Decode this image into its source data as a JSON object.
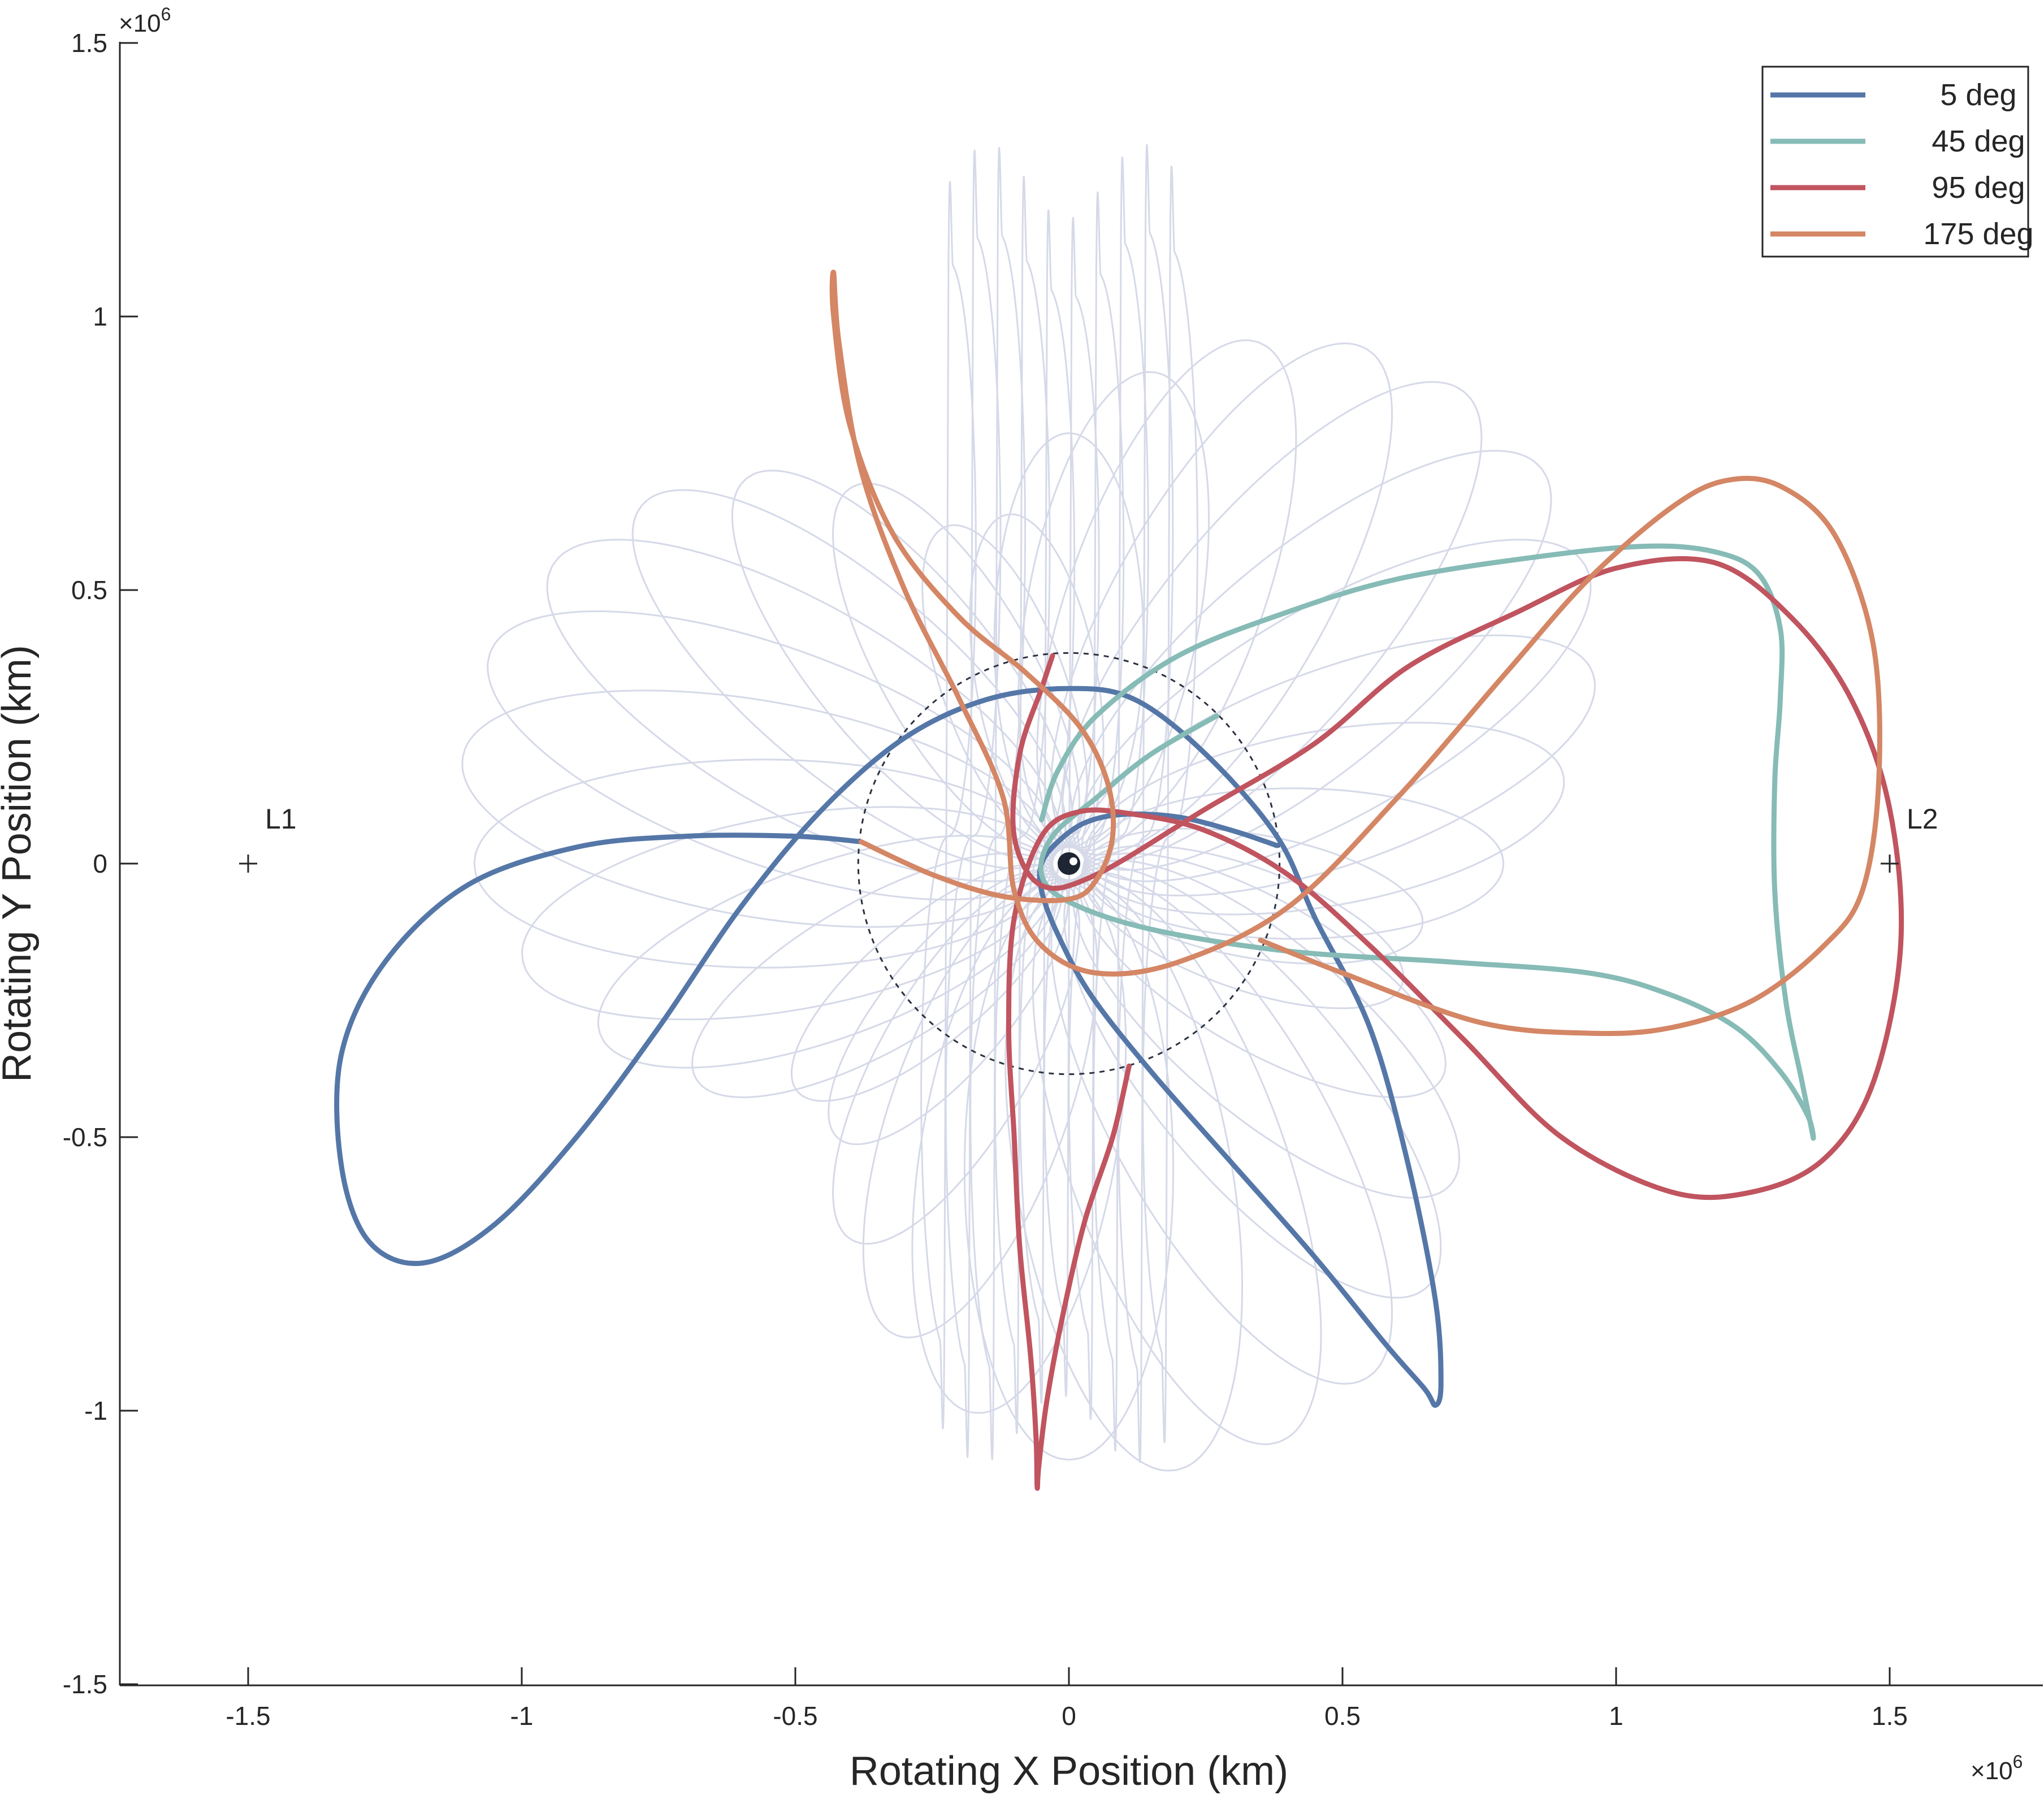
{
  "chart_data": {
    "type": "line",
    "title": "",
    "xlabel": "Rotating X Position (km)",
    "ylabel": "Rotating Y Position (km)",
    "scale_factor": {
      "base": "×10",
      "exponent": "6"
    },
    "xlim": [
      -1.75,
      1.77
    ],
    "ylim": [
      -1.5,
      1.5
    ],
    "xticks": [
      -1.5,
      -1,
      -0.5,
      0,
      0.5,
      1,
      1.5
    ],
    "xtick_labels": [
      "-1.5",
      "-1",
      "-0.5",
      "0",
      "0.5",
      "1",
      "1.5"
    ],
    "yticks": [
      -1.5,
      -1,
      -0.5,
      0,
      0.5,
      1,
      1.5
    ],
    "ytick_labels": [
      "-1.5",
      "-1",
      "-0.5",
      "0",
      "0.5",
      "1",
      "1.5"
    ],
    "grid": false,
    "legend_position": "top-right",
    "points": [
      {
        "label": "L1",
        "x": -1.5,
        "y": 0
      },
      {
        "label": "L2",
        "x": 1.5,
        "y": 0
      }
    ],
    "reference_circle": {
      "center": [
        0,
        0
      ],
      "radius": 0.385,
      "style": "dashed"
    },
    "central_body": {
      "x": 0,
      "y": 0
    },
    "series": [
      {
        "name": "5 deg",
        "color": "#5577a8",
        "points": [
          [
            0.38,
            0.033
          ],
          [
            0.3,
            0.06
          ],
          [
            0.2,
            0.085
          ],
          [
            0.1,
            0.09
          ],
          [
            0.03,
            0.075
          ],
          [
            -0.02,
            0.04
          ],
          [
            -0.05,
            0
          ],
          [
            -0.05,
            -0.05
          ],
          [
            -0.02,
            -0.13
          ],
          [
            0.04,
            -0.24
          ],
          [
            0.15,
            -0.38
          ],
          [
            0.3,
            -0.55
          ],
          [
            0.45,
            -0.72
          ],
          [
            0.58,
            -0.88
          ],
          [
            0.65,
            -0.96
          ],
          [
            0.67,
            -0.99
          ],
          [
            0.68,
            -0.95
          ],
          [
            0.67,
            -0.8
          ],
          [
            0.62,
            -0.55
          ],
          [
            0.55,
            -0.3
          ],
          [
            0.45,
            -0.1
          ],
          [
            0.38,
            0.05
          ],
          [
            0.25,
            0.2
          ],
          [
            0.12,
            0.3
          ],
          [
            0,
            0.32
          ],
          [
            -0.15,
            0.3
          ],
          [
            -0.3,
            0.23
          ],
          [
            -0.45,
            0.1
          ],
          [
            -0.6,
            -0.08
          ],
          [
            -0.75,
            -0.3
          ],
          [
            -0.9,
            -0.5
          ],
          [
            -1.05,
            -0.66
          ],
          [
            -1.18,
            -0.73
          ],
          [
            -1.28,
            -0.69
          ],
          [
            -1.33,
            -0.55
          ],
          [
            -1.33,
            -0.35
          ],
          [
            -1.25,
            -0.18
          ],
          [
            -1.1,
            -0.04
          ],
          [
            -0.9,
            0.03
          ],
          [
            -0.7,
            0.05
          ],
          [
            -0.5,
            0.05
          ],
          [
            -0.38,
            0.04
          ]
        ]
      },
      {
        "name": "45 deg",
        "color": "#86bbb6",
        "points": [
          [
            0.27,
            0.27
          ],
          [
            0.15,
            0.2
          ],
          [
            0.05,
            0.12
          ],
          [
            -0.03,
            0.05
          ],
          [
            -0.05,
            -0.02
          ],
          [
            0,
            -0.07
          ],
          [
            0.15,
            -0.12
          ],
          [
            0.4,
            -0.16
          ],
          [
            0.7,
            -0.18
          ],
          [
            0.95,
            -0.2
          ],
          [
            1.1,
            -0.24
          ],
          [
            1.22,
            -0.3
          ],
          [
            1.3,
            -0.38
          ],
          [
            1.35,
            -0.46
          ],
          [
            1.36,
            -0.5
          ],
          [
            1.34,
            -0.4
          ],
          [
            1.31,
            -0.25
          ],
          [
            1.29,
            -0.05
          ],
          [
            1.29,
            0.15
          ],
          [
            1.3,
            0.3
          ],
          [
            1.3,
            0.43
          ],
          [
            1.26,
            0.53
          ],
          [
            1.18,
            0.57
          ],
          [
            1.05,
            0.58
          ],
          [
            0.85,
            0.56
          ],
          [
            0.6,
            0.52
          ],
          [
            0.4,
            0.46
          ],
          [
            0.2,
            0.38
          ],
          [
            0.05,
            0.27
          ],
          [
            -0.02,
            0.17
          ],
          [
            -0.05,
            0.08
          ]
        ]
      },
      {
        "name": "95 deg",
        "color": "#c0545f",
        "points": [
          [
            0.11,
            -0.37
          ],
          [
            0.08,
            -0.5
          ],
          [
            0.03,
            -0.65
          ],
          [
            -0.01,
            -0.82
          ],
          [
            -0.04,
            -0.98
          ],
          [
            -0.055,
            -1.1
          ],
          [
            -0.058,
            -1.14
          ],
          [
            -0.06,
            -1.05
          ],
          [
            -0.07,
            -0.9
          ],
          [
            -0.09,
            -0.7
          ],
          [
            -0.1,
            -0.5
          ],
          [
            -0.11,
            -0.3
          ],
          [
            -0.1,
            -0.1
          ],
          [
            -0.05,
            0.05
          ],
          [
            0.02,
            0.095
          ],
          [
            0.12,
            0.09
          ],
          [
            0.25,
            0.06
          ],
          [
            0.4,
            -0.02
          ],
          [
            0.55,
            -0.15
          ],
          [
            0.72,
            -0.32
          ],
          [
            0.9,
            -0.5
          ],
          [
            1.1,
            -0.6
          ],
          [
            1.25,
            -0.6
          ],
          [
            1.38,
            -0.54
          ],
          [
            1.47,
            -0.4
          ],
          [
            1.52,
            -0.15
          ],
          [
            1.5,
            0.1
          ],
          [
            1.43,
            0.3
          ],
          [
            1.32,
            0.45
          ],
          [
            1.18,
            0.55
          ],
          [
            1,
            0.54
          ],
          [
            0.82,
            0.46
          ],
          [
            0.62,
            0.36
          ],
          [
            0.45,
            0.22
          ],
          [
            0.25,
            0.1
          ],
          [
            0.05,
            -0.02
          ],
          [
            -0.05,
            -0.04
          ],
          [
            -0.1,
            0.05
          ],
          [
            -0.09,
            0.2
          ],
          [
            -0.05,
            0.32
          ],
          [
            -0.03,
            0.38
          ]
        ]
      },
      {
        "name": "175 deg",
        "color": "#d48665",
        "points": [
          [
            -0.38,
            0.04
          ],
          [
            -0.25,
            -0.02
          ],
          [
            -0.12,
            -0.06
          ],
          [
            0,
            -0.065
          ],
          [
            0.05,
            -0.03
          ],
          [
            0.08,
            0.05
          ],
          [
            0.07,
            0.15
          ],
          [
            0.02,
            0.25
          ],
          [
            -0.08,
            0.35
          ],
          [
            -0.2,
            0.45
          ],
          [
            -0.32,
            0.6
          ],
          [
            -0.4,
            0.8
          ],
          [
            -0.43,
            1.0
          ],
          [
            -0.43,
            1.08
          ],
          [
            -0.42,
            0.95
          ],
          [
            -0.38,
            0.72
          ],
          [
            -0.3,
            0.5
          ],
          [
            -0.2,
            0.3
          ],
          [
            -0.12,
            0.12
          ],
          [
            -0.1,
            -0.05
          ],
          [
            -0.05,
            -0.15
          ],
          [
            0.05,
            -0.2
          ],
          [
            0.2,
            -0.18
          ],
          [
            0.4,
            -0.08
          ],
          [
            0.6,
            0.12
          ],
          [
            0.8,
            0.35
          ],
          [
            0.95,
            0.52
          ],
          [
            1.1,
            0.65
          ],
          [
            1.2,
            0.7
          ],
          [
            1.3,
            0.69
          ],
          [
            1.4,
            0.6
          ],
          [
            1.47,
            0.4
          ],
          [
            1.48,
            0.15
          ],
          [
            1.45,
            -0.05
          ],
          [
            1.38,
            -0.15
          ],
          [
            1.25,
            -0.25
          ],
          [
            1.1,
            -0.3
          ],
          [
            0.95,
            -0.31
          ],
          [
            0.75,
            -0.29
          ],
          [
            0.5,
            -0.2
          ],
          [
            0.35,
            -0.14
          ]
        ]
      }
    ],
    "background_trajectories": {
      "color": "#d5d9e8",
      "count": 36
    }
  }
}
